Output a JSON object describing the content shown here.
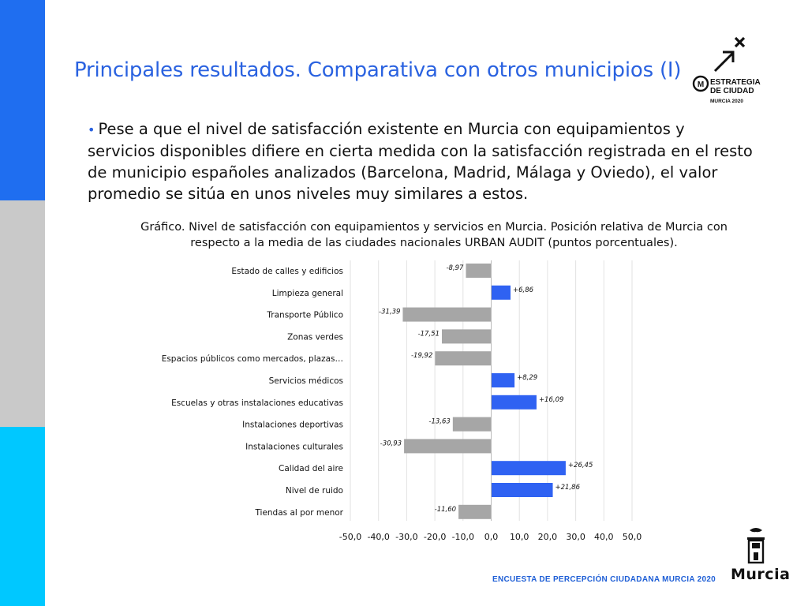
{
  "header": {
    "title": "Principales resultados. Comparativa con otros municipios (I)"
  },
  "body": {
    "bullet": "•",
    "text": "Pese a que el nivel de satisfacción existente en Murcia con equipamientos y servicios disponibles difiere en cierta medida con la satisfacción registrada en el resto de municipio españoles analizados (Barcelona, Madrid, Málaga y Oviedo), el valor promedio se sitúa en unos niveles muy similares a estos."
  },
  "chart_caption": {
    "line1": "Gráfico. Nivel de satisfacción con equipamientos y servicios en Murcia. Posición relativa de Murcia con",
    "line2": "respecto a la media de las ciudades nacionales URBAN AUDIT (puntos porcentuales)."
  },
  "logo": {
    "line1": "ESTRATEGIA",
    "line2": "DE CIUDAD",
    "line3": "MURCIA 2020"
  },
  "footer": {
    "text": "ENCUESTA DE PERCEPCIÓN CIUDADANA MURCIA 2020",
    "brand": "Murcia"
  },
  "colors": {
    "positive": "#2f62f2",
    "negative": "#a6a6a6",
    "accent": "#2a62e0"
  },
  "chart_data": {
    "type": "bar",
    "orientation": "horizontal",
    "categories": [
      "Estado de calles y edificios",
      "Limpieza general",
      "Transporte Público",
      "Zonas verdes",
      "Espacios públicos como mercados, plazas…",
      "Servicios médicos",
      "Escuelas y otras instalaciones educativas",
      "Instalaciones deportivas",
      "Instalaciones culturales",
      "Calidad del aire",
      "Nivel de ruido",
      "Tiendas al por menor"
    ],
    "values": [
      -8.97,
      6.86,
      -31.39,
      -17.51,
      -19.92,
      8.29,
      16.09,
      -13.63,
      -30.93,
      26.45,
      21.86,
      -11.6
    ],
    "data_labels": [
      "-8,97",
      "+6,86",
      "-31,39",
      "-17,51",
      "-19,92",
      "+8,29",
      "+16,09",
      "-13,63",
      "-30,93",
      "+26,45",
      "+21,86",
      "-11,60"
    ],
    "xlim": [
      -50,
      50
    ],
    "x_ticks": [
      -50,
      -40,
      -30,
      -20,
      -10,
      0,
      10,
      20,
      30,
      40,
      50
    ],
    "x_tick_labels": [
      "-50,0",
      "-40,0",
      "-30,0",
      "-20,0",
      "-10,0",
      "0,0",
      "10,0",
      "20,0",
      "30,0",
      "40,0",
      "50,0"
    ],
    "grid": true,
    "legend": "none"
  }
}
